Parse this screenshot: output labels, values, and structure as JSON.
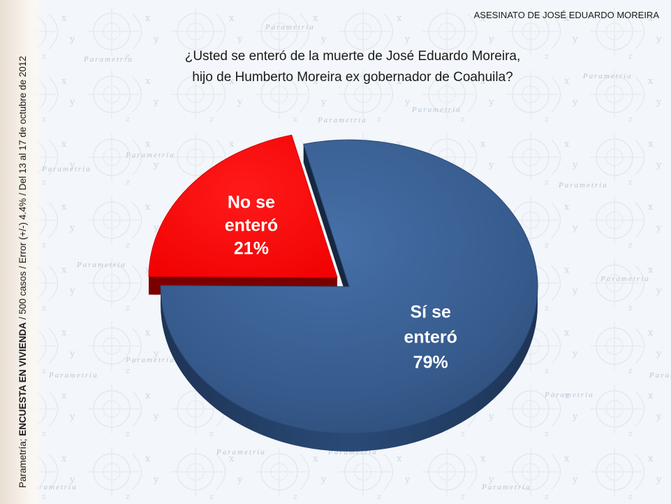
{
  "header": {
    "title": "ASESINATO DE JOSÉ EDUARDO MOREIRA"
  },
  "question": {
    "line1": "¿Usted se enteró de la muerte de José Eduardo Moreira,",
    "line2": "hijo de Humberto Moreira ex gobernador de Coahuila?"
  },
  "side_note": {
    "prefix": "Parametría; ",
    "bold": "ENCUESTA EN VIVIENDA",
    "suffix": " / 500 casos / Error (+/-) 4.4% / Del 13 al 17 de octubre de 2012"
  },
  "watermark_text": "Parametría",
  "colors": {
    "si": "#3a5f92",
    "no": "#ff0000"
  },
  "chart_data": {
    "type": "pie",
    "title": "",
    "slices": [
      {
        "label_line1": "Sí se",
        "label_line2": "enteró",
        "value": 79,
        "value_label": "79%",
        "color": "#3a5f92"
      },
      {
        "label_line1": "No se",
        "label_line2": "enteró",
        "value": 21,
        "value_label": "21%",
        "color": "#ff0000"
      }
    ]
  }
}
